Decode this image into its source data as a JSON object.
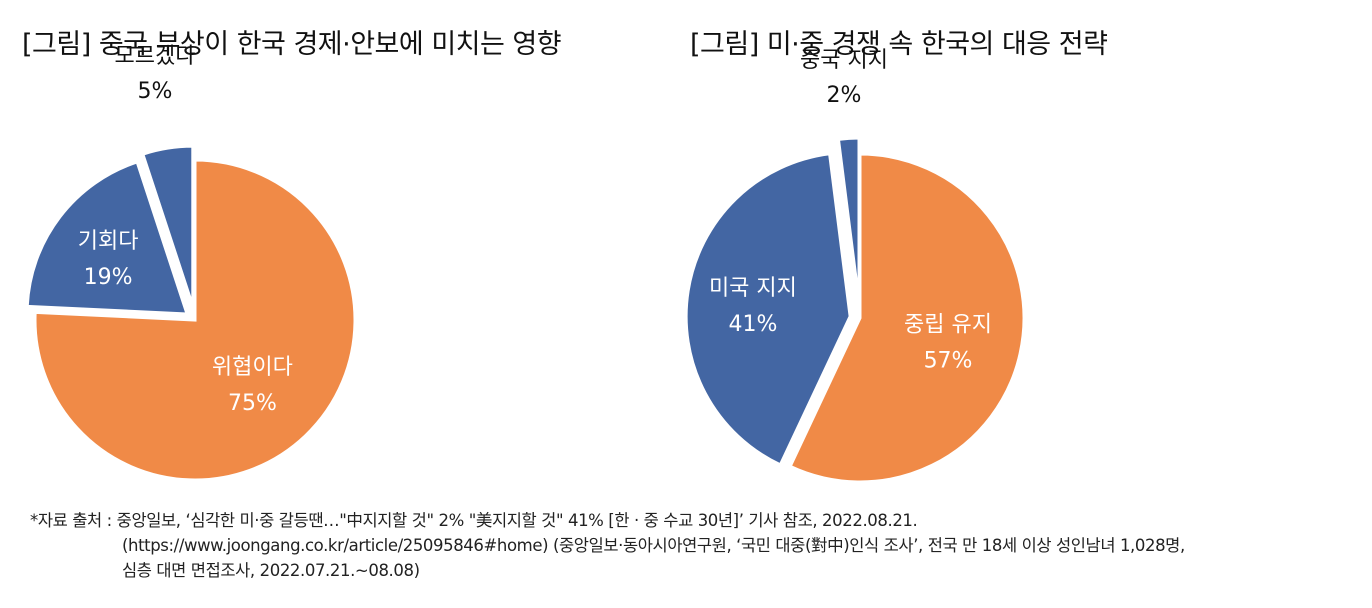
{
  "chart_data": [
    {
      "type": "pie",
      "title": "[그림] 중국 부상이 한국 경제·안보에 미치는 영향",
      "slices": [
        {
          "label": "위협이다",
          "value": 75,
          "value_label": "75%",
          "color": "#F08A47",
          "label_pos": "inside"
        },
        {
          "label": "기회다",
          "value": 19,
          "value_label": "19%",
          "color": "#4366A3",
          "label_pos": "inside"
        },
        {
          "label": "모르겠다",
          "value": 5,
          "value_label": "5%",
          "color": "#4366A3",
          "label_pos": "outside"
        }
      ],
      "legend": "none"
    },
    {
      "type": "pie",
      "title": "[그림] 미·중 경쟁 속 한국의 대응 전략",
      "slices": [
        {
          "label": "중립 유지",
          "value": 57,
          "value_label": "57%",
          "color": "#F08A47",
          "label_pos": "inside"
        },
        {
          "label": "미국 지지",
          "value": 41,
          "value_label": "41%",
          "color": "#4366A3",
          "label_pos": "inside"
        },
        {
          "label": "중국 지지",
          "value": 2,
          "value_label": "2%",
          "color": "#4366A3",
          "label_pos": "outside"
        }
      ],
      "legend": "none"
    }
  ],
  "source": {
    "line1": "*자료 출처 : 중앙일보, ‘심각한 미·중 갈등땐…\"中지지할 것\" 2% \"美지지할 것\" 41% [한 · 중 수교 30년]’ 기사 참조, 2022.08.21.",
    "line2": "(https://www.joongang.co.kr/article/25095846#home) (중앙일보·동아시아연구원, ‘국민 대중(對中)인식 조사’, 전국 만 18세 이상 성인남녀 1,028명,",
    "line3": "심층 대면 면접조사, 2022.07.21.~08.08)"
  }
}
